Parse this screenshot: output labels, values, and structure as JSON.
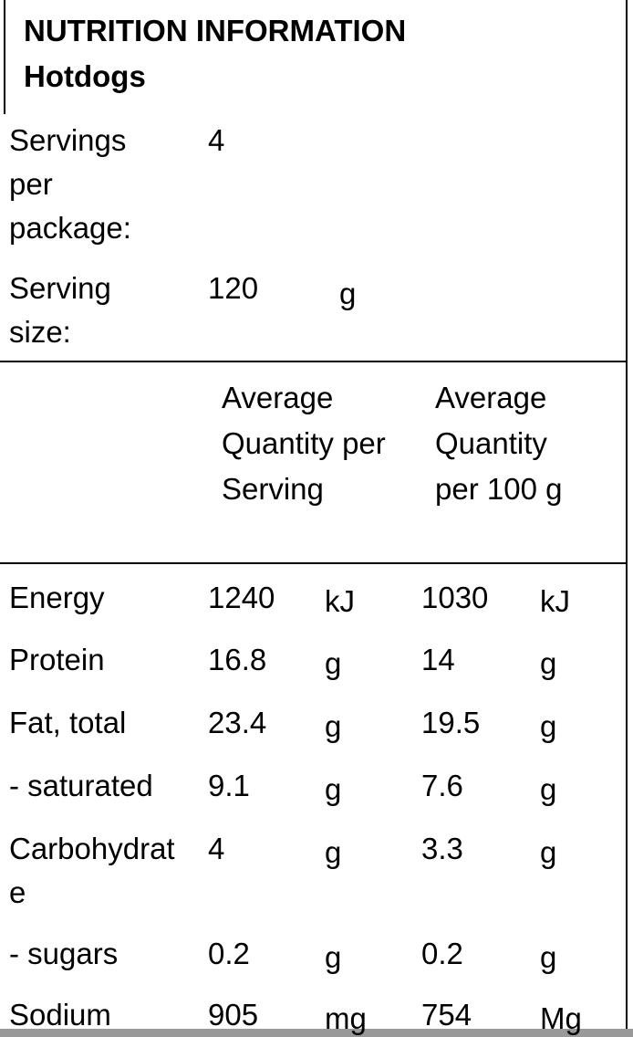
{
  "header": {
    "title": "NUTRITION INFORMATION",
    "product": "Hotdogs"
  },
  "servings": {
    "per_package_label": "Servings per package:",
    "per_package": "4",
    "size_label": "Serving size:",
    "size": "120",
    "size_unit": "g"
  },
  "table": {
    "columns": [
      "Average Quantity per Serving",
      "Average Quantity per 100 g"
    ],
    "rows": [
      [
        "Energy",
        "1240",
        "kJ",
        "1030",
        "kJ"
      ],
      [
        "Protein",
        "16.8",
        "g",
        "14",
        "g"
      ],
      [
        "Fat, total",
        "23.4",
        "g",
        "19.5",
        "g"
      ],
      [
        "- saturated",
        "9.1",
        "g",
        "7.6",
        "g"
      ],
      [
        "Carbohydrate",
        "4",
        "g",
        "3.3",
        "g"
      ],
      [
        "- sugars",
        "0.2",
        "g",
        "0.2",
        "g"
      ],
      [
        "Sodium",
        "905",
        "mg",
        "754",
        "Mg"
      ]
    ]
  }
}
